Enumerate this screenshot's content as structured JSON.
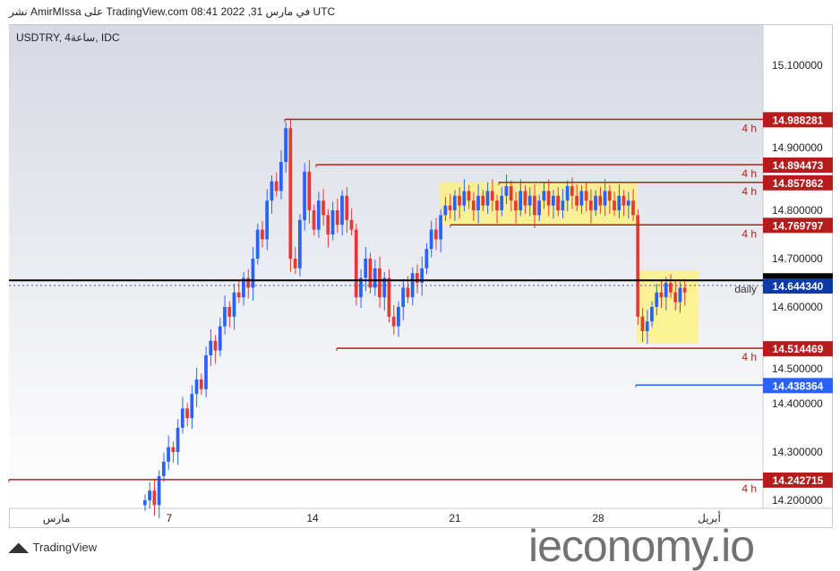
{
  "header": "نشر AmirMIssa على TradingView.com 08:41 2022 ,31 في مارس UTC",
  "symbol": "USDTRY, 4ساعة, IDC",
  "footer": "TradingView",
  "watermark": "ieconomy.io",
  "chart_data": {
    "type": "candlestick",
    "ylim": [
      14.18,
      15.16
    ],
    "y_ticks": [
      "15.100000",
      "14.900000",
      "14.800000",
      "14.700000",
      "14.600000",
      "14.500000",
      "14.400000",
      "14.300000",
      "14.200000"
    ],
    "y_tick_values": [
      15.1,
      14.9,
      14.8,
      14.7,
      14.6,
      14.5,
      14.4,
      14.3,
      14.2
    ],
    "x_ticks": [
      "مارس",
      "7",
      "14",
      "21",
      "28",
      "أبريل"
    ],
    "start_open": 14.19,
    "closes": [
      14.2,
      14.22,
      14.19,
      14.25,
      14.28,
      14.31,
      14.3,
      14.35,
      14.39,
      14.37,
      14.42,
      14.45,
      14.43,
      14.5,
      14.53,
      14.51,
      14.56,
      14.6,
      14.58,
      14.63,
      14.62,
      14.66,
      14.64,
      14.7,
      14.76,
      14.74,
      14.82,
      14.86,
      14.84,
      14.9,
      14.97,
      14.7,
      14.68,
      14.78,
      14.88,
      14.8,
      14.76,
      14.82,
      14.79,
      14.75,
      14.8,
      14.77,
      14.83,
      14.78,
      14.76,
      14.62,
      14.66,
      14.7,
      14.64,
      14.68,
      14.62,
      14.66,
      14.58,
      14.56,
      14.6,
      14.64,
      14.62,
      14.67,
      14.65,
      14.68,
      14.72,
      14.76,
      14.74,
      14.79,
      14.81,
      14.8,
      14.83,
      14.81,
      14.84,
      14.82,
      14.8,
      14.83,
      14.81,
      14.84,
      14.82,
      14.8,
      14.83,
      14.85,
      14.82,
      14.8,
      14.84,
      14.81,
      14.83,
      14.79,
      14.82,
      14.84,
      14.81,
      14.83,
      14.8,
      14.82,
      14.85,
      14.83,
      14.81,
      14.84,
      14.82,
      14.8,
      14.83,
      14.81,
      14.84,
      14.82,
      14.8,
      14.83,
      14.81,
      14.82,
      14.79,
      14.58,
      14.55,
      14.57,
      14.6,
      14.63,
      14.62,
      14.65,
      14.63,
      14.61,
      14.64,
      14.63
    ],
    "levels": [
      {
        "value": "14.988281",
        "price": 14.988281,
        "tf": "4 h",
        "color": "#b71c1c"
      },
      {
        "value": "14.894473",
        "price": 14.894473,
        "tf": "4 h",
        "color": "#b71c1c"
      },
      {
        "value": "14.857862",
        "price": 14.857862,
        "tf": "4 h",
        "color": "#b71c1c"
      },
      {
        "value": "14.769797",
        "price": 14.769797,
        "tf": "4 h",
        "color": "#b71c1c"
      },
      {
        "value": "14.514469",
        "price": 14.514469,
        "tf": "4 h",
        "color": "#b71c1c"
      },
      {
        "value": "14.242715",
        "price": 14.242715,
        "tf": "4 h",
        "color": "#b71c1c"
      },
      {
        "value": "14.438364",
        "price": 14.438364,
        "tf": "",
        "color": "#2962ff"
      }
    ],
    "daily_level": {
      "label": "daily",
      "value": "14.644340",
      "price": 14.64434,
      "color": "#0d3aa9"
    },
    "black_level": {
      "price": 14.655
    },
    "colors": {
      "up": "#2962ff",
      "down": "#e53935",
      "box": "#fff176"
    },
    "boxes": [
      {
        "from_price": 14.857862,
        "to_price": 14.769797
      },
      {
        "from_price": 14.675,
        "to_price": 14.525
      }
    ]
  }
}
